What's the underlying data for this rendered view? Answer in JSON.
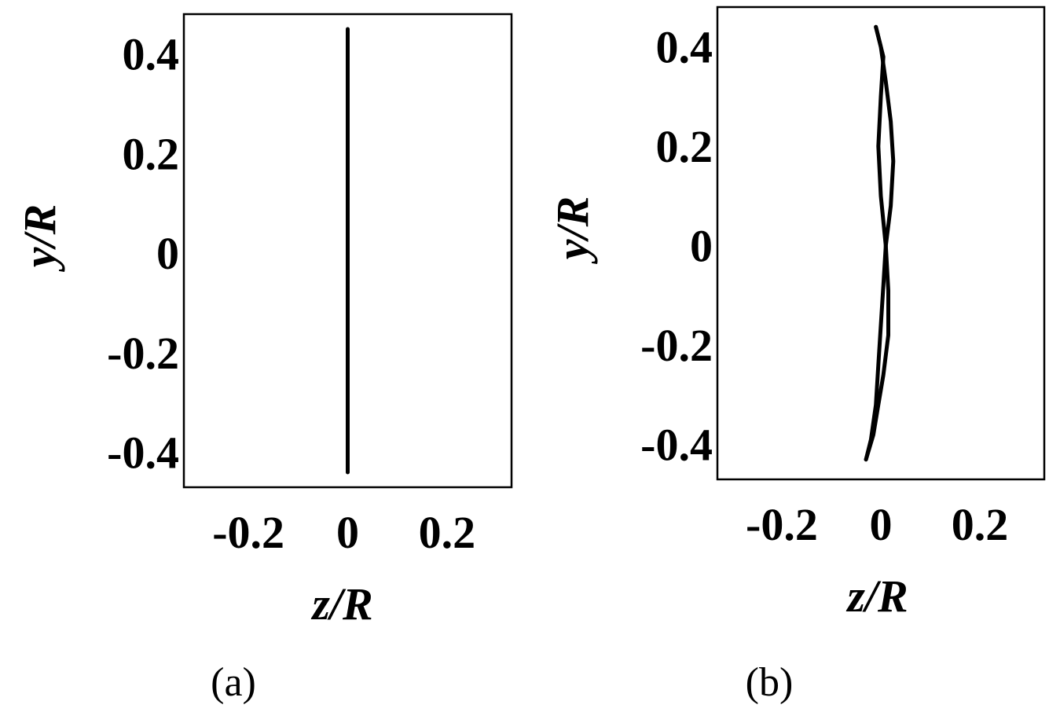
{
  "chart_data": [
    {
      "panel": "a",
      "caption": "(a)",
      "type": "line",
      "xlabel": "z/R",
      "ylabel": "y/R",
      "xlim": [
        -0.33,
        0.33
      ],
      "ylim": [
        -0.47,
        0.48
      ],
      "xticks": [
        -0.2,
        0,
        0.2
      ],
      "xtick_labels": [
        "-0.2",
        "0",
        "0.2"
      ],
      "yticks": [
        0.4,
        0.2,
        0,
        -0.2,
        -0.4
      ],
      "ytick_labels": [
        "0.4",
        "0.2",
        "0",
        "-0.2",
        "-0.4"
      ],
      "grid": false,
      "series": [
        {
          "values": [
            {
              "x": 0.0,
              "y": 0.45
            },
            {
              "x": 0.0,
              "y": -0.44
            }
          ]
        }
      ]
    },
    {
      "panel": "b",
      "caption": "(b)",
      "type": "line",
      "xlabel": "z/R",
      "ylabel": "y/R",
      "xlim": [
        -0.33,
        0.33
      ],
      "ylim": [
        -0.47,
        0.48
      ],
      "xticks": [
        -0.2,
        0,
        0.2
      ],
      "xtick_labels": [
        "-0.2",
        "0",
        "0.2"
      ],
      "yticks": [
        0.4,
        0.2,
        0,
        -0.2,
        -0.4
      ],
      "ytick_labels": [
        "0.4",
        "0.2",
        "0",
        "-0.2",
        "-0.4"
      ],
      "grid": false,
      "series": [
        {
          "values": [
            {
              "x": -0.01,
              "y": 0.44
            },
            {
              "x": 0.0,
              "y": 0.4
            },
            {
              "x": 0.01,
              "y": 0.33
            },
            {
              "x": 0.02,
              "y": 0.25
            },
            {
              "x": 0.025,
              "y": 0.17
            },
            {
              "x": 0.02,
              "y": 0.08
            },
            {
              "x": 0.01,
              "y": 0.0
            },
            {
              "x": 0.005,
              "y": -0.08
            },
            {
              "x": 0.0,
              "y": -0.16
            },
            {
              "x": -0.005,
              "y": -0.24
            },
            {
              "x": -0.01,
              "y": -0.32
            },
            {
              "x": -0.02,
              "y": -0.39
            },
            {
              "x": -0.03,
              "y": -0.43
            }
          ]
        },
        {
          "values": [
            {
              "x": -0.01,
              "y": 0.44
            },
            {
              "x": 0.005,
              "y": 0.38
            },
            {
              "x": 0.0,
              "y": 0.3
            },
            {
              "x": -0.005,
              "y": 0.2
            },
            {
              "x": 0.0,
              "y": 0.1
            },
            {
              "x": 0.01,
              "y": 0.0
            },
            {
              "x": 0.015,
              "y": -0.09
            },
            {
              "x": 0.015,
              "y": -0.18
            },
            {
              "x": 0.005,
              "y": -0.26
            },
            {
              "x": -0.005,
              "y": -0.32
            },
            {
              "x": -0.015,
              "y": -0.38
            },
            {
              "x": -0.03,
              "y": -0.43
            }
          ]
        }
      ]
    }
  ]
}
